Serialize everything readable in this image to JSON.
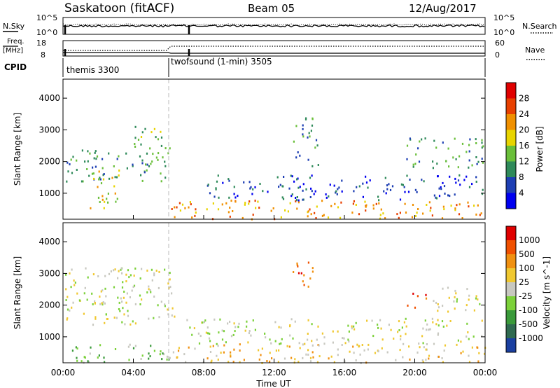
{
  "header": {
    "station": "Saskatoon (fitACF)",
    "beam": "Beam 05",
    "date": "12/Aug/2017"
  },
  "aux_panels": {
    "nsky_label": "N.Sky",
    "nsky_ticks": [
      "10^5",
      "10^0"
    ],
    "nsearch_label": "N.Search",
    "nsearch_ticks": [
      "10^5",
      "10^0"
    ],
    "freq_label": "Freq.",
    "freq_unit": "[MHz]",
    "freq_ticks": [
      "18",
      "8"
    ],
    "nave_label": "Nave",
    "nave_ticks": [
      "60",
      "0"
    ],
    "cpid_label": "CPID",
    "cpid_segments": [
      {
        "name": "themis 3300",
        "start_hour": 0,
        "end_hour": 6
      },
      {
        "name": "twofsound (1-min) 3505",
        "start_hour": 6,
        "end_hour": 24
      }
    ]
  },
  "x_axis": {
    "label": "Time UT",
    "ticks": [
      "00:00",
      "04:00",
      "08:00",
      "12:00",
      "16:00",
      "20:00",
      "00:00"
    ],
    "range_hours": [
      0,
      24
    ]
  },
  "chart_data": [
    {
      "type": "heatmap",
      "ylabel": "Slant Range [km]",
      "yticks": [
        1000,
        2000,
        3000,
        4000
      ],
      "ylim": [
        180,
        4600
      ],
      "colorbar_label": "Power [dB]",
      "colorbar_ticks": [
        4,
        8,
        12,
        16,
        20,
        24,
        28
      ],
      "colorbar_colors": [
        "#0000f0",
        "#1e3fb4",
        "#2f8a5a",
        "#6abf3a",
        "#e8d400",
        "#f09000",
        "#e84000",
        "#e00000"
      ],
      "scatter_bands": [
        {
          "start_hour": 0.1,
          "end_hour": 6.0,
          "range_low": 1400,
          "range_high": 2400,
          "level": 2
        },
        {
          "start_hour": 4.0,
          "end_hour": 6.3,
          "range_low": 2300,
          "range_high": 3200,
          "level": 3
        },
        {
          "start_hour": 1.5,
          "end_hour": 3.2,
          "range_low": 500,
          "range_high": 1800,
          "level": 4
        },
        {
          "start_hour": 6.0,
          "end_hour": 24.0,
          "range_low": 200,
          "range_high": 800,
          "level": 5
        },
        {
          "start_hour": 8.0,
          "end_hour": 24.0,
          "range_low": 800,
          "range_high": 1600,
          "level": 1
        },
        {
          "start_hour": 13.0,
          "end_hour": 14.5,
          "range_low": 1800,
          "range_high": 3400,
          "level": 2
        },
        {
          "start_hour": 19.5,
          "end_hour": 24.0,
          "range_low": 1800,
          "range_high": 2800,
          "level": 2
        }
      ]
    },
    {
      "type": "heatmap",
      "ylabel": "Slant Range [km]",
      "yticks": [
        1000,
        2000,
        3000,
        4000
      ],
      "ylim": [
        180,
        4600
      ],
      "colorbar_label": "Velocity [m s^-1]",
      "colorbar_ticks": [
        1000,
        500,
        100,
        25,
        -25,
        -100,
        -500,
        -1000
      ],
      "colorbar_colors": [
        "#1a3fa0",
        "#2f6a50",
        "#3a9a3a",
        "#7cd13a",
        "#c8c8c0",
        "#f0c830",
        "#f09010",
        "#f05000",
        "#e00000"
      ],
      "scatter_bands": [
        {
          "start_hour": 0.1,
          "end_hour": 6.3,
          "range_low": 1400,
          "range_high": 3200,
          "level": 4
        },
        {
          "start_hour": 0.5,
          "end_hour": 6.0,
          "range_low": 200,
          "range_high": 800,
          "level": 3
        },
        {
          "start_hour": 6.0,
          "end_hour": 24.0,
          "range_low": 200,
          "range_high": 800,
          "level": 5
        },
        {
          "start_hour": 7.0,
          "end_hour": 24.0,
          "range_low": 800,
          "range_high": 1600,
          "level": 4
        },
        {
          "start_hour": 13.0,
          "end_hour": 14.5,
          "range_low": 2600,
          "range_high": 3400,
          "level": 7
        },
        {
          "start_hour": 19.5,
          "end_hour": 21.0,
          "range_low": 1900,
          "range_high": 2400,
          "level": 7
        },
        {
          "start_hour": 21.0,
          "end_hour": 24.0,
          "range_low": 1800,
          "range_high": 2600,
          "level": 4
        }
      ]
    }
  ]
}
